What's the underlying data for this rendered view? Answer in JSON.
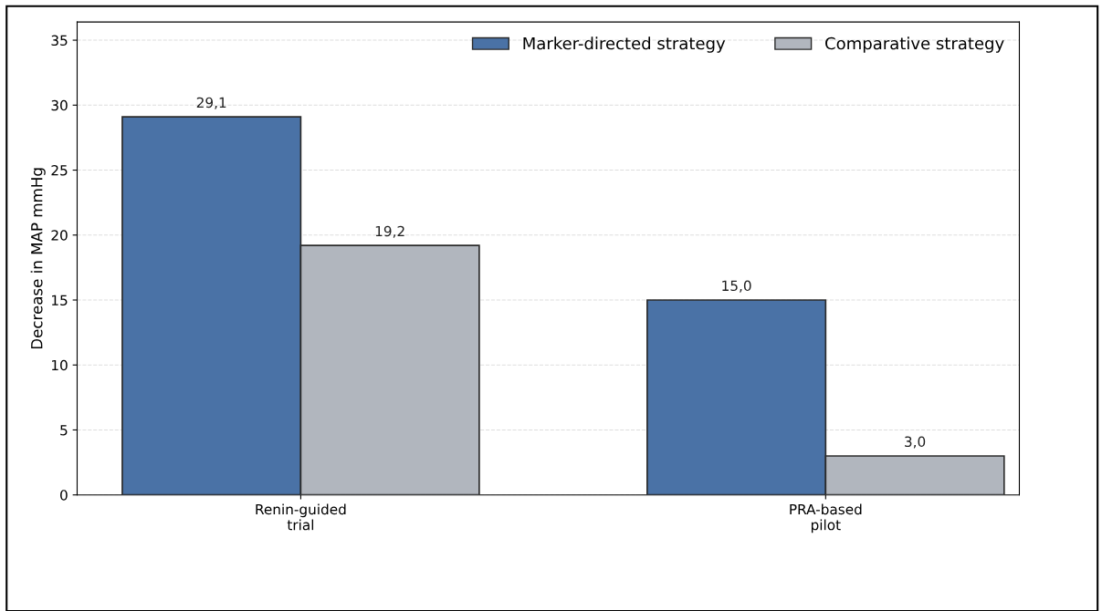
{
  "chart_data": {
    "type": "bar",
    "ylabel": "Decrease in MAP mmHg",
    "categories": [
      "Renin-guided\ntrial",
      "PRA-based\npilot"
    ],
    "series": [
      {
        "name": "Marker-directed strategy",
        "color": "#4a72a6",
        "values": [
          29.1,
          15.0
        ],
        "value_labels": [
          "29,1",
          "15,0"
        ]
      },
      {
        "name": "Comparative strategy",
        "color": "#b1b6be",
        "values": [
          19.2,
          3.0
        ],
        "value_labels": [
          "19,2",
          "3,0"
        ]
      }
    ],
    "ylim": [
      0,
      36.4
    ],
    "yticks": [
      0,
      5,
      10,
      15,
      20,
      25,
      30,
      35
    ],
    "grid": "y",
    "legend": "top right"
  }
}
